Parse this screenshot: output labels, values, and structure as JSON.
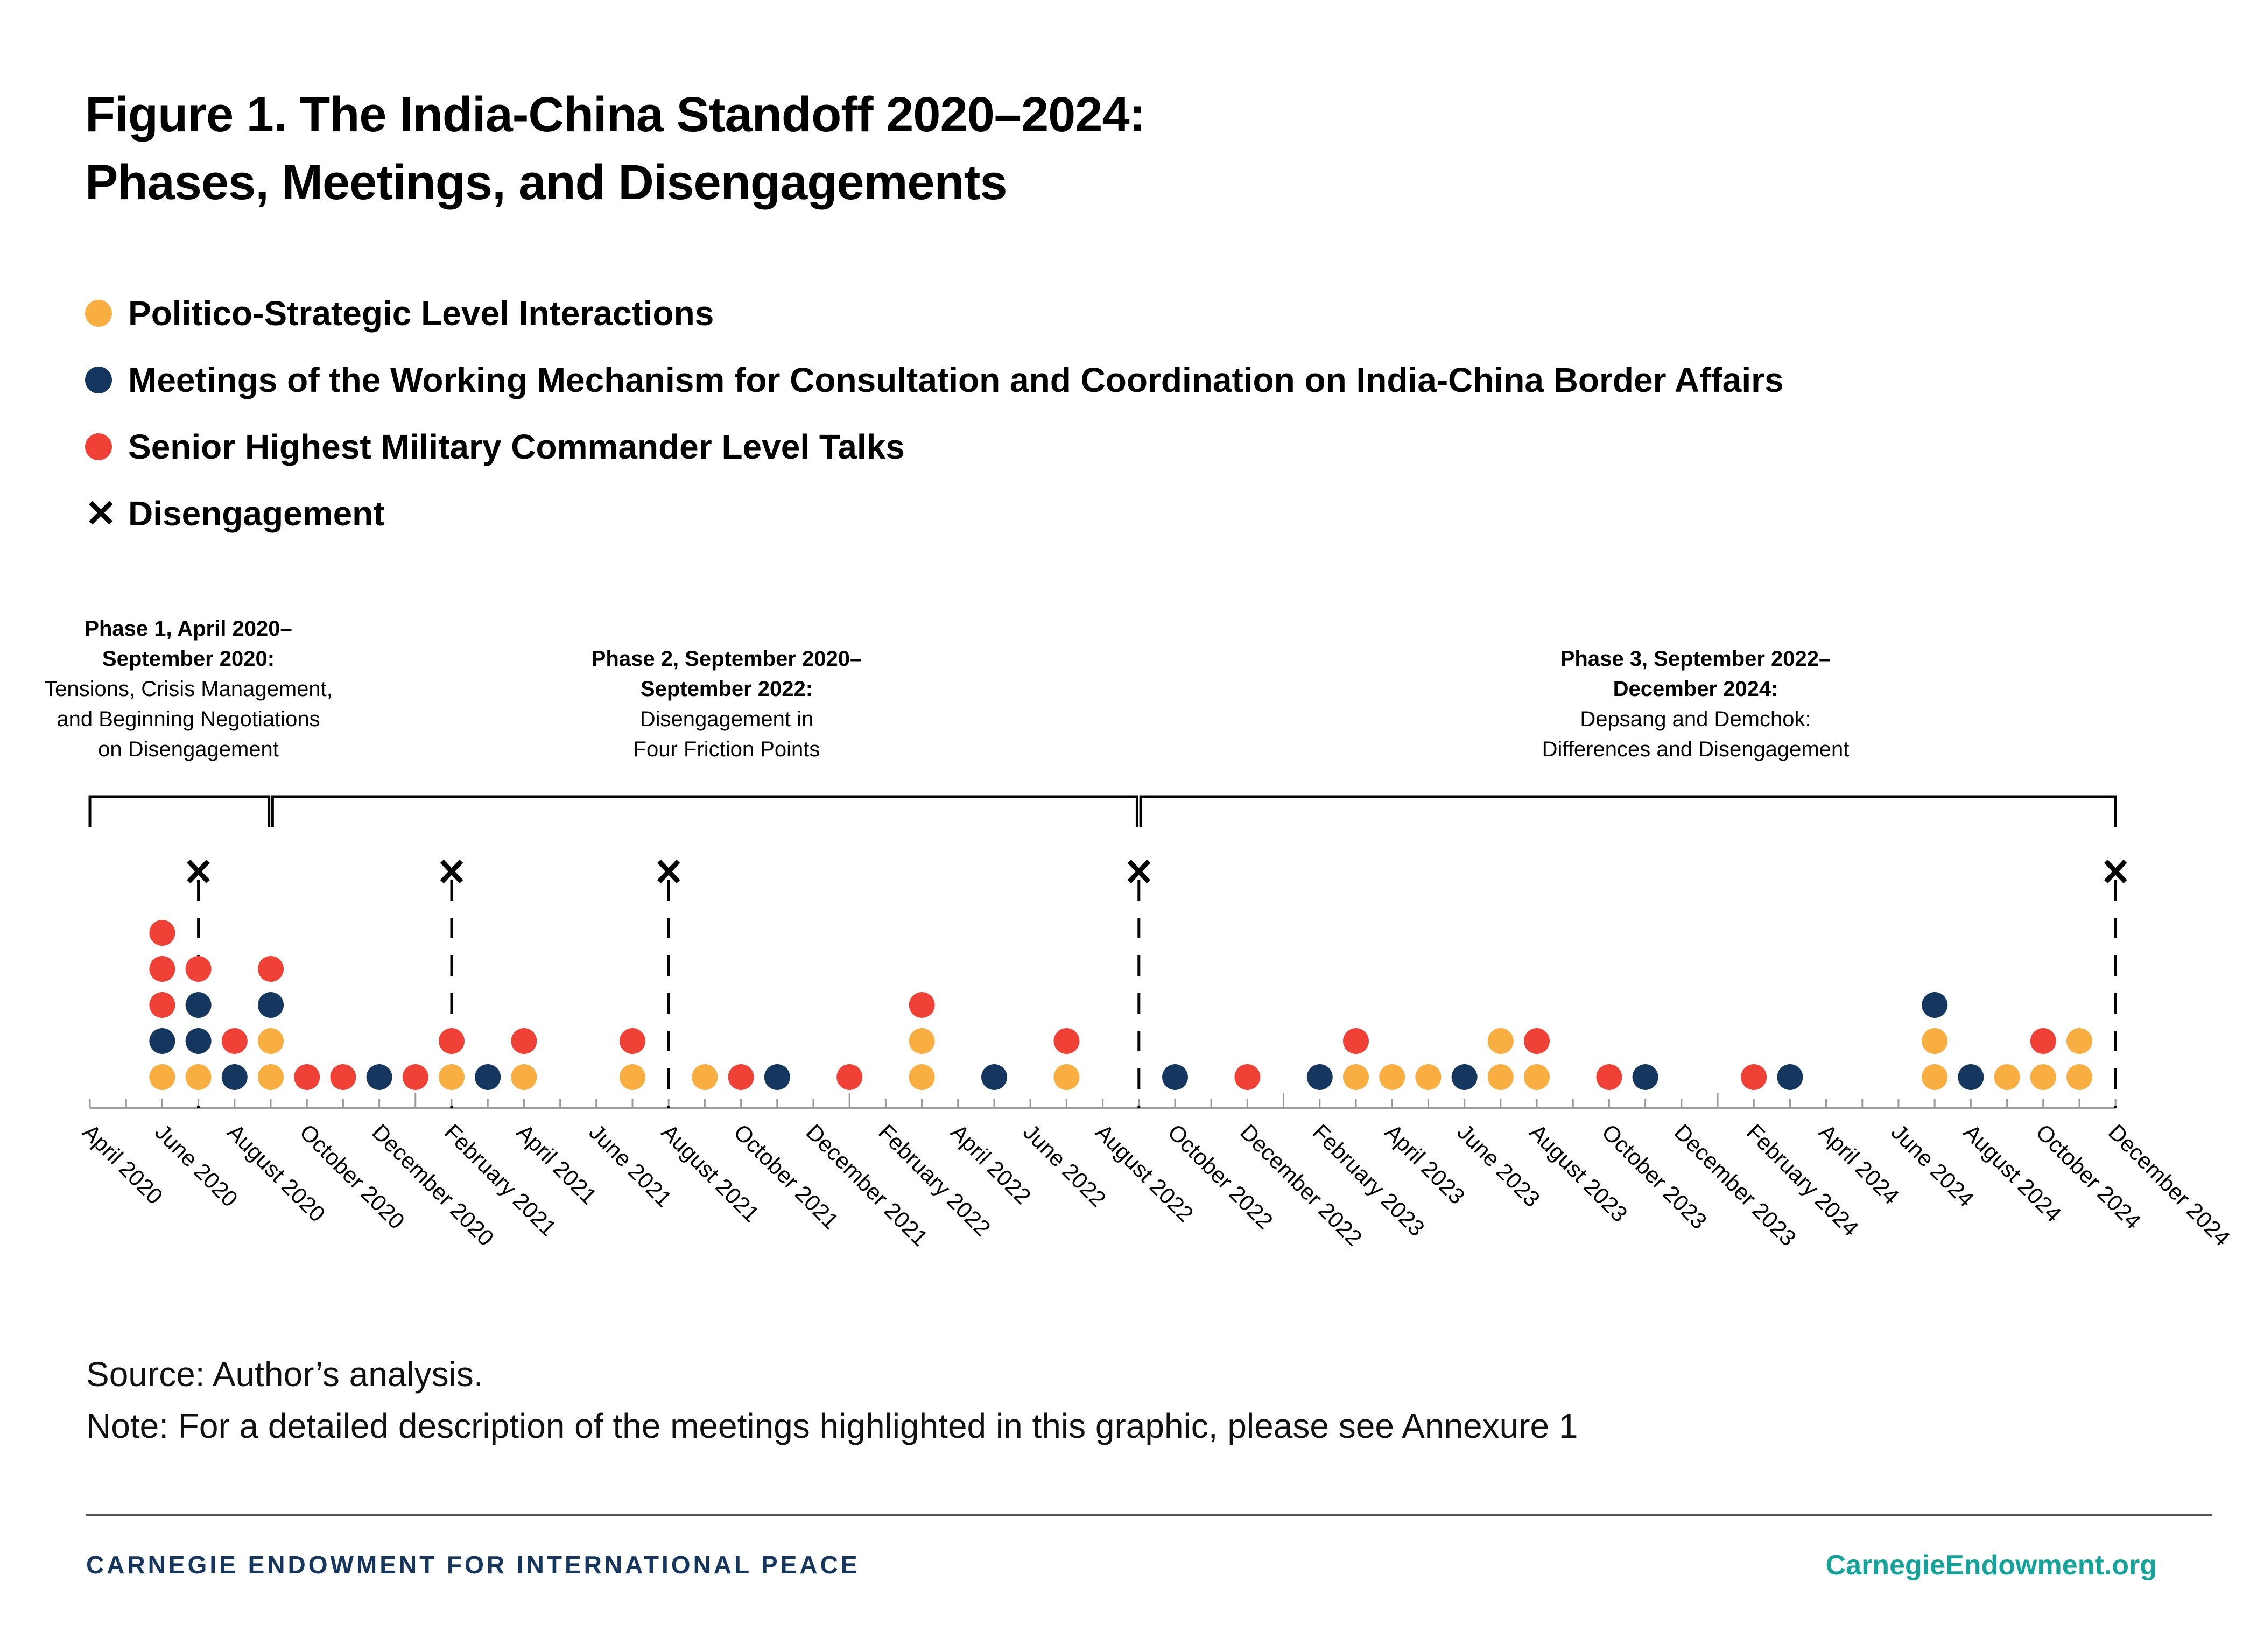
{
  "title": {
    "line1": "Figure 1. The India-China Standoff 2020–2024:",
    "line2": "Phases, Meetings, and Disengagements"
  },
  "legend": [
    {
      "key": "political",
      "label": "Politico-Strategic Level Interactions",
      "color": "#F9AE42"
    },
    {
      "key": "wmcc",
      "label": "Meetings of the Working Mechanism for Consultation and Coordination on India-China Border Affairs",
      "color": "#15365E"
    },
    {
      "key": "military",
      "label": "Senior Highest Military Commander Level Talks",
      "color": "#EF4136"
    },
    {
      "key": "disengagement",
      "label": "Disengagement",
      "symbol": "✕"
    }
  ],
  "phases": [
    {
      "head1": "Phase 1, April 2020–",
      "head2": "September 2020:",
      "desc1": "Tensions, Crisis Management,",
      "desc2": "and Beginning Negotiations",
      "desc3": "on Disengagement",
      "start": "April 2020",
      "end": "September 2020"
    },
    {
      "head1": "Phase 2, September 2020–",
      "head2": "September 2022:",
      "desc1": "Disengagement in",
      "desc2": "Four Friction Points",
      "desc3": "",
      "start": "September 2020",
      "end": "September 2022"
    },
    {
      "head1": "Phase 3, September 2022–",
      "head2": "December 2024:",
      "desc1": "Depsang and Demchok:",
      "desc2": "Differences and Disengagement",
      "desc3": "",
      "start": "September 2022",
      "end": "December 2024"
    }
  ],
  "chart_data": {
    "type": "scatter",
    "title": "Figure 1. The India-China Standoff 2020–2024: Phases, Meetings, and Disengagements",
    "xlabel": "",
    "ylabel": "",
    "x_range": [
      "April 2020",
      "December 2024"
    ],
    "tick_labels": [
      "April 2020",
      "June 2020",
      "August 2020",
      "October 2020",
      "December 2020",
      "February 2021",
      "April 2021",
      "June 2021",
      "August 2021",
      "October 2021",
      "December 2021",
      "February 2022",
      "April 2022",
      "June 2022",
      "August 2022",
      "October 2022",
      "December 2022",
      "February 2023",
      "April 2023",
      "June 2023",
      "August 2023",
      "October 2023",
      "December 2023",
      "February 2024",
      "April 2024",
      "June 2024",
      "August 2024",
      "October 2024",
      "December 2024"
    ],
    "series_colors": {
      "political": "#F9AE42",
      "wmcc": "#15365E",
      "military": "#EF4136"
    },
    "events": [
      {
        "month": "June 2020",
        "stack": [
          "political",
          "wmcc",
          "military",
          "military",
          "military"
        ]
      },
      {
        "month": "July 2020",
        "stack": [
          "political",
          "wmcc",
          "wmcc",
          "military"
        ]
      },
      {
        "month": "August 2020",
        "stack": [
          "wmcc",
          "military"
        ]
      },
      {
        "month": "September 2020",
        "stack": [
          "political",
          "political",
          "wmcc",
          "military"
        ]
      },
      {
        "month": "October 2020",
        "stack": [
          "military"
        ]
      },
      {
        "month": "November 2020",
        "stack": [
          "military"
        ]
      },
      {
        "month": "December 2020",
        "stack": [
          "wmcc"
        ]
      },
      {
        "month": "January 2021",
        "stack": [
          "military"
        ]
      },
      {
        "month": "February 2021",
        "stack": [
          "political",
          "military"
        ]
      },
      {
        "month": "March 2021",
        "stack": [
          "wmcc"
        ]
      },
      {
        "month": "April 2021",
        "stack": [
          "political",
          "military"
        ]
      },
      {
        "month": "July 2021",
        "stack": [
          "political",
          "military"
        ]
      },
      {
        "month": "September 2021",
        "stack": [
          "political"
        ]
      },
      {
        "month": "October 2021",
        "stack": [
          "military"
        ]
      },
      {
        "month": "November 2021",
        "stack": [
          "wmcc"
        ]
      },
      {
        "month": "January 2022",
        "stack": [
          "military"
        ]
      },
      {
        "month": "March 2022",
        "stack": [
          "political",
          "political",
          "military"
        ]
      },
      {
        "month": "May 2022",
        "stack": [
          "wmcc"
        ]
      },
      {
        "month": "July 2022",
        "stack": [
          "political",
          "military"
        ]
      },
      {
        "month": "October 2022",
        "stack": [
          "wmcc"
        ]
      },
      {
        "month": "December 2022",
        "stack": [
          "military"
        ]
      },
      {
        "month": "February 2023",
        "stack": [
          "wmcc"
        ]
      },
      {
        "month": "March 2023",
        "stack": [
          "political",
          "military"
        ]
      },
      {
        "month": "April 2023",
        "stack": [
          "political"
        ]
      },
      {
        "month": "May 2023",
        "stack": [
          "political"
        ]
      },
      {
        "month": "June 2023",
        "stack": [
          "wmcc"
        ]
      },
      {
        "month": "July 2023",
        "stack": [
          "political",
          "political"
        ]
      },
      {
        "month": "August 2023",
        "stack": [
          "political",
          "military"
        ]
      },
      {
        "month": "October 2023",
        "stack": [
          "military"
        ]
      },
      {
        "month": "November 2023",
        "stack": [
          "wmcc"
        ]
      },
      {
        "month": "February 2024",
        "stack": [
          "military"
        ]
      },
      {
        "month": "March 2024",
        "stack": [
          "wmcc"
        ]
      },
      {
        "month": "July 2024",
        "stack": [
          "political",
          "political",
          "wmcc"
        ]
      },
      {
        "month": "August 2024",
        "stack": [
          "wmcc"
        ]
      },
      {
        "month": "September 2024",
        "stack": [
          "political"
        ]
      },
      {
        "month": "October 2024",
        "stack": [
          "political",
          "military"
        ]
      },
      {
        "month": "November 2024",
        "stack": [
          "political",
          "political"
        ]
      }
    ],
    "disengagements": [
      "July 2020",
      "February 2021",
      "August 2021",
      "September 2022",
      "December 2024"
    ],
    "grid": false,
    "legend_position": "top-left"
  },
  "source": "Source: Author’s analysis.",
  "note": "Note: For a detailed description of the meetings highlighted in this graphic, please see Annexure 1",
  "footer": {
    "org": "CARNEGIE ENDOWMENT FOR INTERNATIONAL PEACE",
    "url": "CarnegieEndowment.org"
  }
}
